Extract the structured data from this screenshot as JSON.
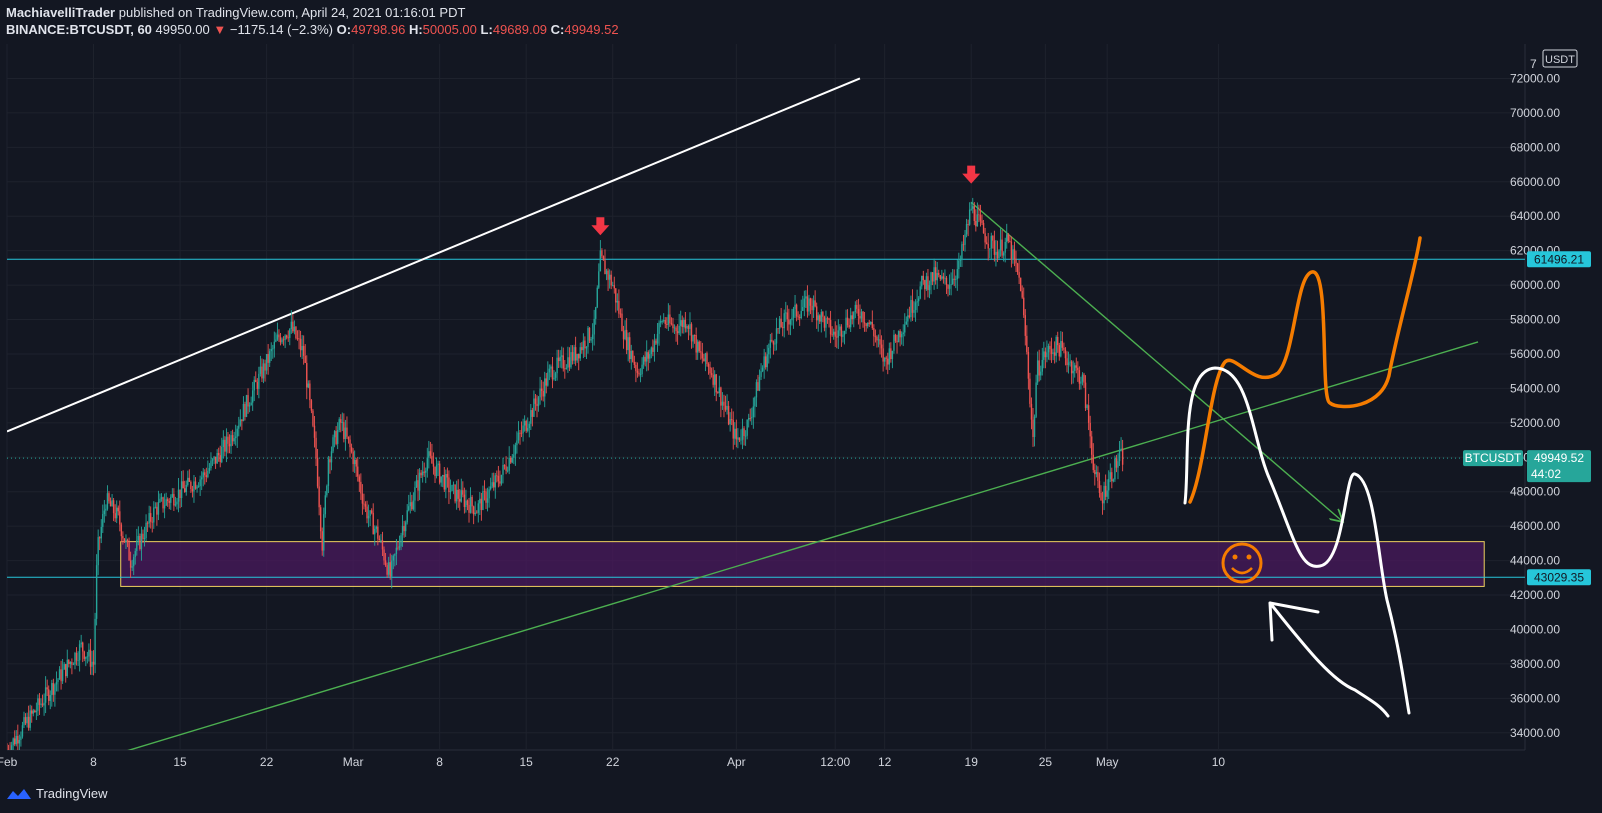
{
  "header": {
    "author": "MachiavelliTrader",
    "published_text": "published on TradingView.com, April 24, 2021 01:16:01 PDT",
    "symbol": "BINANCE:BTCUSDT, 60",
    "last": "49950.00",
    "change": "−1175.14 (−2.3%)",
    "o_label": "O:",
    "o_val": "49798.96",
    "h_label": "H:",
    "h_val": "50005.00",
    "l_label": "L:",
    "l_val": "49689.09",
    "c_label": "C:",
    "c_val": "49949.52"
  },
  "footer": {
    "brand": "TradingView"
  },
  "chart_data": {
    "type": "candlestick",
    "symbol": "BINANCE:BTCUSDT",
    "interval": "60",
    "currency_label": "USDT",
    "x_ticks": [
      "Feb",
      "8",
      "15",
      "22",
      "Mar",
      "8",
      "15",
      "22",
      "Apr",
      "12:00",
      "12",
      "19",
      "25",
      "May",
      "10"
    ],
    "x_ticks_days": [
      1,
      8,
      15,
      22,
      29,
      36,
      43,
      50,
      60,
      68,
      72,
      79,
      85,
      90,
      99
    ],
    "ylim": [
      33000,
      74000
    ],
    "y_ticks": [
      34000,
      36000,
      38000,
      40000,
      42000,
      44000,
      46000,
      48000,
      50000,
      52000,
      54000,
      56000,
      58000,
      60000,
      62000,
      64000,
      66000,
      68000,
      70000,
      72000
    ],
    "price_path": [
      [
        1,
        33000
      ],
      [
        3,
        35000
      ],
      [
        5,
        37000
      ],
      [
        7,
        39000
      ],
      [
        8,
        38000
      ],
      [
        8.3,
        44500
      ],
      [
        9,
        47500
      ],
      [
        10,
        46500
      ],
      [
        11,
        44000
      ],
      [
        13,
        47000
      ],
      [
        15,
        48000
      ],
      [
        17,
        49000
      ],
      [
        19,
        51000
      ],
      [
        21,
        54000
      ],
      [
        23,
        57000
      ],
      [
        24,
        57500
      ],
      [
        25,
        56000
      ],
      [
        26,
        50000
      ],
      [
        26.5,
        45000
      ],
      [
        27,
        50000
      ],
      [
        28,
        52000
      ],
      [
        29,
        50000
      ],
      [
        30,
        47000
      ],
      [
        31,
        45500
      ],
      [
        32,
        43100
      ],
      [
        33,
        46000
      ],
      [
        35,
        50000
      ],
      [
        37,
        48000
      ],
      [
        39,
        47000
      ],
      [
        41,
        49000
      ],
      [
        43,
        52000
      ],
      [
        45,
        55000
      ],
      [
        47,
        56000
      ],
      [
        48.5,
        57500
      ],
      [
        49,
        61500
      ],
      [
        50,
        60000
      ],
      [
        51,
        57000
      ],
      [
        52,
        55000
      ],
      [
        53,
        56000
      ],
      [
        54,
        58000
      ],
      [
        55,
        57500
      ],
      [
        56,
        58000
      ],
      [
        57,
        56000
      ],
      [
        58,
        55000
      ],
      [
        59,
        53000
      ],
      [
        60,
        51000
      ],
      [
        61,
        52000
      ],
      [
        62,
        55000
      ],
      [
        63,
        57000
      ],
      [
        64,
        58000
      ],
      [
        65,
        58500
      ],
      [
        66,
        59000
      ],
      [
        67,
        58000
      ],
      [
        68,
        57000
      ],
      [
        69,
        58000
      ],
      [
        70,
        58500
      ],
      [
        71,
        57500
      ],
      [
        72,
        55500
      ],
      [
        73,
        57000
      ],
      [
        74,
        58500
      ],
      [
        75,
        60000
      ],
      [
        76,
        60500
      ],
      [
        77,
        60000
      ],
      [
        78,
        61000
      ],
      [
        79,
        64500
      ],
      [
        80,
        63000
      ],
      [
        81,
        62000
      ],
      [
        82,
        62500
      ],
      [
        83,
        60000
      ],
      [
        83.5,
        56000
      ],
      [
        84,
        51000
      ],
      [
        84.3,
        55000
      ],
      [
        85,
        56000
      ],
      [
        86,
        56500
      ],
      [
        87,
        55500
      ],
      [
        88,
        54500
      ],
      [
        88.5,
        52000
      ],
      [
        89,
        49000
      ],
      [
        89.5,
        47500
      ],
      [
        90,
        48500
      ],
      [
        91,
        50000
      ],
      [
        91.3,
        49950
      ]
    ],
    "current_price": 49949.52,
    "markers": [
      {
        "type": "resistance",
        "value": 61496.21,
        "label": "61496.21"
      },
      {
        "type": "support",
        "value": 43029.35,
        "label": "43029.35"
      },
      {
        "type": "last_price",
        "value": 49949.52,
        "label": "49949.52",
        "countdown": "44:02",
        "tag": "BTCUSDT"
      }
    ],
    "zone": {
      "low": 42500,
      "high": 45100
    },
    "arrows_down_at": [
      {
        "day": 49,
        "price": 61500
      },
      {
        "day": 79,
        "price": 64500
      }
    ],
    "trendlines": [
      {
        "color": "#ffffff",
        "points": [
          [
            1,
            51500
          ],
          [
            70,
            72000
          ]
        ]
      },
      {
        "color": "#4caf50",
        "points": [
          [
            10,
            32800
          ],
          [
            120,
            56700
          ]
        ]
      },
      {
        "color": "#4caf50",
        "arrow": true,
        "points": [
          [
            79,
            64800
          ],
          [
            109,
            46300
          ]
        ]
      }
    ]
  }
}
